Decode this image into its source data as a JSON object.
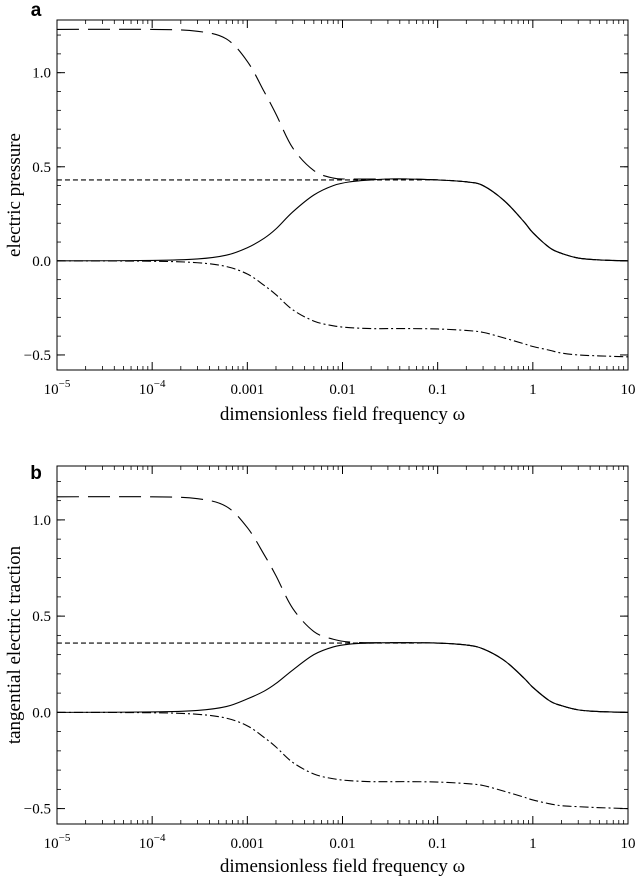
{
  "chart_data": [
    {
      "type": "line",
      "panel_label": "a",
      "xlabel": "dimensionless  field frequency ω",
      "ylabel": "electric pressure",
      "x_scale": "log",
      "xlim": [
        1e-05,
        10
      ],
      "ylim": [
        -0.58,
        1.28
      ],
      "x_ticks": [
        {
          "value": 1e-05,
          "base": "10",
          "exp": "−5"
        },
        {
          "value": 0.0001,
          "base": "10",
          "exp": "−4"
        },
        {
          "value": 0.001,
          "label": "0.001"
        },
        {
          "value": 0.01,
          "label": "0.01"
        },
        {
          "value": 0.1,
          "label": "0.1"
        },
        {
          "value": 1,
          "label": "1"
        },
        {
          "value": 10,
          "label": "10"
        }
      ],
      "y_ticks": [
        {
          "value": -0.5,
          "label": "−0.5"
        },
        {
          "value": 0.0,
          "label": "0.0"
        },
        {
          "value": 0.5,
          "label": "0.5"
        },
        {
          "value": 1.0,
          "label": "1.0"
        }
      ],
      "grid": false,
      "x": [
        1e-05,
        0.0001,
        0.0003,
        0.0006,
        0.001,
        0.0015,
        0.002,
        0.003,
        0.005,
        0.008,
        0.012,
        0.02,
        0.03,
        0.05,
        0.1,
        0.2,
        0.3,
        0.5,
        0.8,
        1,
        1.5,
        2,
        3,
        5,
        10
      ],
      "series": [
        {
          "style": "solid",
          "values": [
            0,
            0.002,
            0.01,
            0.03,
            0.07,
            0.12,
            0.17,
            0.26,
            0.35,
            0.4,
            0.42,
            0.43,
            0.435,
            0.435,
            0.43,
            0.42,
            0.4,
            0.32,
            0.21,
            0.15,
            0.07,
            0.04,
            0.015,
            0.005,
            0.0
          ]
        },
        {
          "style": "long-dash",
          "values": [
            1.23,
            1.23,
            1.22,
            1.18,
            1.06,
            0.9,
            0.78,
            0.6,
            0.48,
            0.44,
            0.435,
            0.435,
            0.435,
            0.435,
            0.43,
            0.42,
            0.4,
            0.32,
            0.21,
            0.15,
            0.07,
            0.04,
            0.015,
            0.005,
            0.0
          ]
        },
        {
          "style": "short-dash",
          "values": [
            0.43,
            0.43,
            0.43,
            0.43,
            0.43,
            0.43,
            0.43,
            0.43,
            0.43,
            0.43,
            0.43,
            0.43,
            0.43,
            0.43,
            0.43,
            0.42,
            0.4,
            0.32,
            0.21,
            0.15,
            0.07,
            0.04,
            0.015,
            0.005,
            0.0
          ]
        },
        {
          "style": "dash-dot",
          "values": [
            0,
            -0.002,
            -0.01,
            -0.03,
            -0.07,
            -0.13,
            -0.18,
            -0.26,
            -0.32,
            -0.345,
            -0.355,
            -0.36,
            -0.36,
            -0.36,
            -0.362,
            -0.37,
            -0.38,
            -0.41,
            -0.44,
            -0.455,
            -0.475,
            -0.49,
            -0.5,
            -0.505,
            -0.51
          ]
        }
      ]
    },
    {
      "type": "line",
      "panel_label": "b",
      "xlabel": "dimensionless  field frequency ω",
      "ylabel": "tangential electric traction",
      "x_scale": "log",
      "xlim": [
        1e-05,
        10
      ],
      "ylim": [
        -0.58,
        1.28
      ],
      "x_ticks": [
        {
          "value": 1e-05,
          "base": "10",
          "exp": "−5"
        },
        {
          "value": 0.0001,
          "base": "10",
          "exp": "−4"
        },
        {
          "value": 0.001,
          "label": "0.001"
        },
        {
          "value": 0.01,
          "label": "0.01"
        },
        {
          "value": 0.1,
          "label": "0.1"
        },
        {
          "value": 1,
          "label": "1"
        },
        {
          "value": 10,
          "label": "10"
        }
      ],
      "y_ticks": [
        {
          "value": -0.5,
          "label": "−0.5"
        },
        {
          "value": 0.0,
          "label": "0.0"
        },
        {
          "value": 0.5,
          "label": "0.5"
        },
        {
          "value": 1.0,
          "label": "1.0"
        }
      ],
      "grid": false,
      "x": [
        1e-05,
        0.0001,
        0.0003,
        0.0006,
        0.001,
        0.0015,
        0.002,
        0.003,
        0.005,
        0.008,
        0.012,
        0.02,
        0.03,
        0.05,
        0.1,
        0.2,
        0.3,
        0.5,
        0.8,
        1,
        1.5,
        2,
        3,
        5,
        10
      ],
      "series": [
        {
          "style": "solid",
          "values": [
            0,
            0.002,
            0.01,
            0.03,
            0.07,
            0.11,
            0.15,
            0.22,
            0.3,
            0.34,
            0.355,
            0.36,
            0.362,
            0.362,
            0.36,
            0.35,
            0.33,
            0.27,
            0.18,
            0.13,
            0.06,
            0.035,
            0.013,
            0.004,
            0.0
          ]
        },
        {
          "style": "long-dash",
          "values": [
            1.12,
            1.12,
            1.11,
            1.07,
            0.96,
            0.82,
            0.71,
            0.54,
            0.42,
            0.38,
            0.365,
            0.362,
            0.362,
            0.362,
            0.36,
            0.35,
            0.33,
            0.27,
            0.18,
            0.13,
            0.06,
            0.035,
            0.013,
            0.004,
            0.0
          ]
        },
        {
          "style": "short-dash",
          "values": [
            0.36,
            0.36,
            0.36,
            0.36,
            0.36,
            0.36,
            0.36,
            0.36,
            0.36,
            0.36,
            0.36,
            0.36,
            0.36,
            0.36,
            0.36,
            0.35,
            0.33,
            0.27,
            0.18,
            0.13,
            0.06,
            0.035,
            0.013,
            0.004,
            0.0
          ]
        },
        {
          "style": "dash-dot",
          "values": [
            0,
            -0.002,
            -0.01,
            -0.03,
            -0.07,
            -0.13,
            -0.18,
            -0.26,
            -0.32,
            -0.345,
            -0.355,
            -0.36,
            -0.36,
            -0.36,
            -0.362,
            -0.37,
            -0.38,
            -0.41,
            -0.44,
            -0.455,
            -0.475,
            -0.485,
            -0.49,
            -0.495,
            -0.5
          ]
        }
      ]
    }
  ]
}
